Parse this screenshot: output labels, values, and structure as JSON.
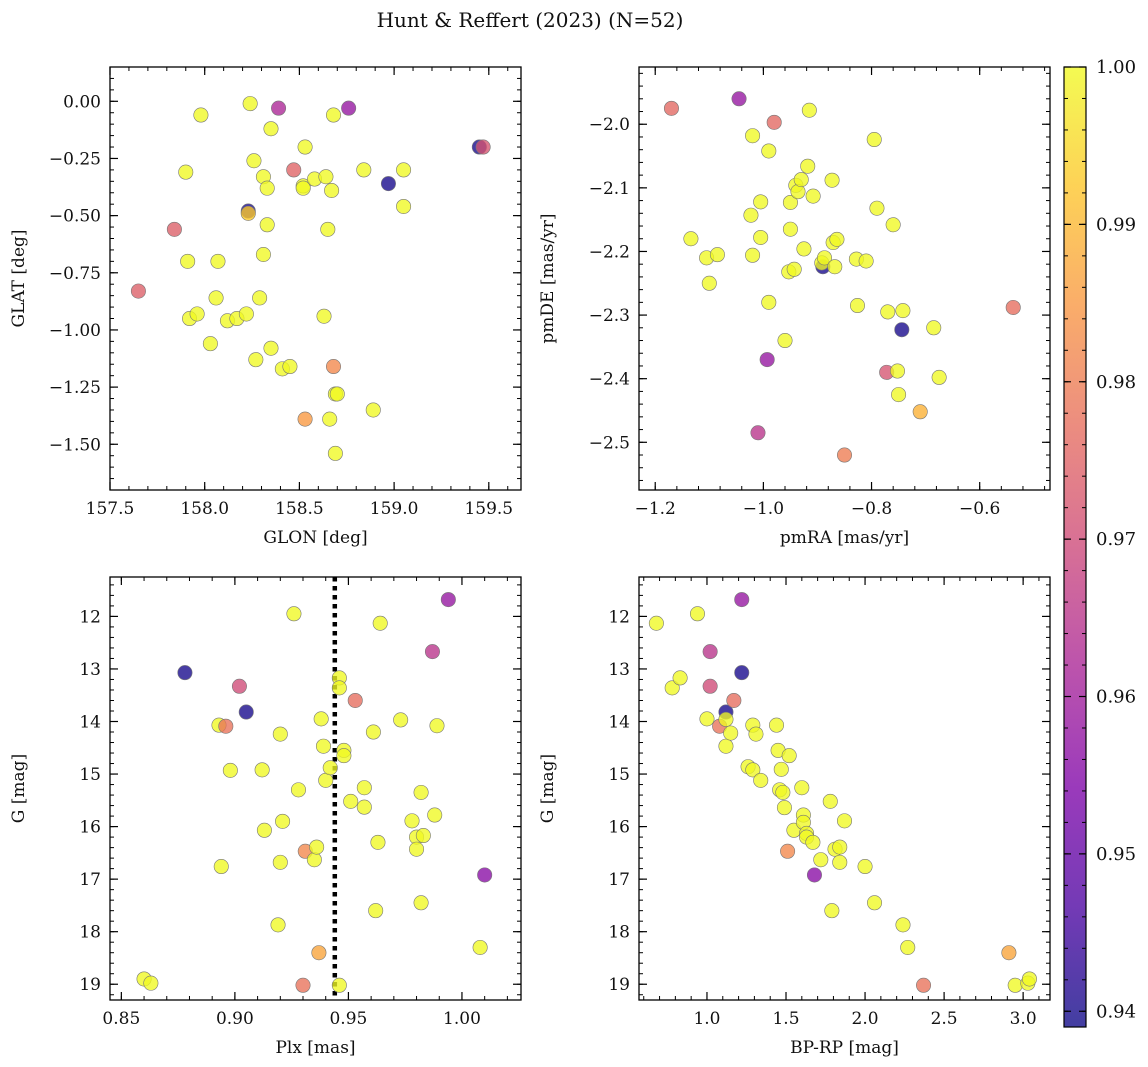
{
  "figure_title": "Hunt & Reffert (2023) (N=52)",
  "colorbar": {
    "range": [
      0.939,
      1.0
    ],
    "ticks": [
      0.94,
      0.95,
      0.96,
      0.97,
      0.98,
      0.99,
      1.0
    ],
    "tick_labels": [
      "0.94",
      "0.95",
      "0.96",
      "0.97",
      "0.98",
      "0.99",
      "1.00"
    ],
    "colormap": "plasma"
  },
  "chart_data": [
    {
      "type": "scatter",
      "id": "glon_glat",
      "xlabel": "GLON [deg]",
      "ylabel": "GLAT [deg]",
      "xlim": [
        157.5,
        159.67
      ],
      "ylim": [
        -1.7,
        0.15
      ],
      "y_inverted": false,
      "xticks": [
        157.5,
        158.0,
        158.5,
        159.0,
        159.5
      ],
      "xtick_labels": [
        "157.5",
        "158.0",
        "158.5",
        "159.0",
        "159.5"
      ],
      "yticks": [
        0.0,
        -0.25,
        -0.5,
        -0.75,
        -1.0,
        -1.25,
        -1.5
      ],
      "ytick_labels": [
        "0.00",
        "−0.25",
        "−0.50",
        "−0.75",
        "−1.00",
        "−1.25",
        "−1.50"
      ],
      "points": [
        [
          157.65,
          -0.83,
          0.974
        ],
        [
          157.84,
          -0.56,
          0.974
        ],
        [
          157.9,
          -0.31,
          1.0
        ],
        [
          157.91,
          -0.7,
          1.0
        ],
        [
          157.92,
          -0.95,
          1.0
        ],
        [
          157.96,
          -0.93,
          1.0
        ],
        [
          157.98,
          -0.06,
          1.0
        ],
        [
          158.03,
          -1.06,
          1.0
        ],
        [
          158.06,
          -0.86,
          1.0
        ],
        [
          158.07,
          -0.7,
          1.0
        ],
        [
          158.12,
          -0.96,
          1.0
        ],
        [
          158.17,
          -0.95,
          1.0
        ],
        [
          158.22,
          -0.93,
          1.0
        ],
        [
          158.23,
          -0.48,
          0.94
        ],
        [
          158.23,
          -0.49,
          0.993
        ],
        [
          158.24,
          -0.01,
          1.0
        ],
        [
          158.26,
          -0.26,
          1.0
        ],
        [
          158.27,
          -1.13,
          1.0
        ],
        [
          158.29,
          -0.86,
          1.0
        ],
        [
          158.31,
          -0.67,
          1.0
        ],
        [
          158.31,
          -0.33,
          1.0
        ],
        [
          158.33,
          -0.38,
          1.0
        ],
        [
          158.33,
          -0.54,
          1.0
        ],
        [
          158.35,
          -0.12,
          1.0
        ],
        [
          158.35,
          -1.08,
          1.0
        ],
        [
          158.39,
          -0.03,
          0.962
        ],
        [
          158.41,
          -1.17,
          1.0
        ],
        [
          158.45,
          -1.16,
          1.0
        ],
        [
          158.47,
          -0.3,
          0.975
        ],
        [
          158.52,
          -0.37,
          1.0
        ],
        [
          158.52,
          -0.38,
          1.0
        ],
        [
          158.53,
          -0.2,
          1.0
        ],
        [
          158.53,
          -1.39,
          0.985
        ],
        [
          158.58,
          -0.34,
          1.0
        ],
        [
          158.63,
          -0.94,
          1.0
        ],
        [
          158.64,
          -0.33,
          1.0
        ],
        [
          158.65,
          -0.56,
          1.0
        ],
        [
          158.66,
          -1.39,
          1.0
        ],
        [
          158.67,
          -0.39,
          1.0
        ],
        [
          158.68,
          -0.06,
          1.0
        ],
        [
          158.68,
          -1.16,
          0.982
        ],
        [
          158.69,
          -1.28,
          1.0
        ],
        [
          158.7,
          -1.28,
          1.0
        ],
        [
          158.69,
          -1.54,
          1.0
        ],
        [
          158.76,
          -0.03,
          0.958
        ],
        [
          158.84,
          -0.3,
          1.0
        ],
        [
          158.89,
          -1.35,
          1.0
        ],
        [
          158.97,
          -0.36,
          0.94
        ],
        [
          159.05,
          -0.3,
          1.0
        ],
        [
          159.05,
          -0.46,
          1.0
        ],
        [
          159.45,
          -0.2,
          0.94
        ],
        [
          159.47,
          -0.2,
          0.972
        ]
      ]
    },
    {
      "type": "scatter",
      "id": "pmra_pmde",
      "xlabel": "pmRA [mas/yr]",
      "ylabel": "pmDE [mas/yr]",
      "xlim": [
        -1.23,
        -0.47
      ],
      "ylim": [
        -2.575,
        -1.91
      ],
      "y_inverted": false,
      "xticks": [
        -1.2,
        -1.0,
        -0.8,
        -0.6
      ],
      "xtick_labels": [
        "−1.2",
        "−1.0",
        "−0.8",
        "−0.6"
      ],
      "yticks": [
        -2.0,
        -2.1,
        -2.2,
        -2.3,
        -2.4,
        -2.5
      ],
      "ytick_labels": [
        "−2.0",
        "−2.1",
        "−2.2",
        "−2.3",
        "−2.4",
        "−2.5"
      ],
      "points": [
        [
          -1.17,
          -1.975,
          0.976
        ],
        [
          -1.134,
          -2.18,
          1.0
        ],
        [
          -1.105,
          -2.21,
          1.0
        ],
        [
          -1.1,
          -2.25,
          1.0
        ],
        [
          -1.085,
          -2.205,
          1.0
        ],
        [
          -1.045,
          -1.96,
          0.958
        ],
        [
          -1.02,
          -2.018,
          1.0
        ],
        [
          -1.023,
          -2.143,
          1.0
        ],
        [
          -1.02,
          -2.206,
          1.0
        ],
        [
          -1.01,
          -2.485,
          0.965
        ],
        [
          -1.005,
          -2.122,
          1.0
        ],
        [
          -1.005,
          -2.178,
          1.0
        ],
        [
          -0.99,
          -2.042,
          1.0
        ],
        [
          -0.99,
          -2.28,
          1.0
        ],
        [
          -0.993,
          -2.37,
          0.958
        ],
        [
          -0.98,
          -1.997,
          0.976
        ],
        [
          -0.96,
          -2.34,
          1.0
        ],
        [
          -0.953,
          -2.232,
          1.0
        ],
        [
          -0.95,
          -2.123,
          1.0
        ],
        [
          -0.95,
          -2.165,
          1.0
        ],
        [
          -0.943,
          -2.228,
          1.0
        ],
        [
          -0.94,
          -2.096,
          1.0
        ],
        [
          -0.936,
          -2.106,
          1.0
        ],
        [
          -0.93,
          -2.087,
          1.0
        ],
        [
          -0.925,
          -2.196,
          1.0
        ],
        [
          -0.918,
          -2.066,
          1.0
        ],
        [
          -0.915,
          -1.978,
          1.0
        ],
        [
          -0.908,
          -2.113,
          1.0
        ],
        [
          -0.89,
          -2.224,
          0.94
        ],
        [
          -0.892,
          -2.218,
          1.0
        ],
        [
          -0.887,
          -2.21,
          1.0
        ],
        [
          -0.873,
          -2.088,
          1.0
        ],
        [
          -0.871,
          -2.186,
          1.0
        ],
        [
          -0.868,
          -2.224,
          1.0
        ],
        [
          -0.864,
          -2.181,
          1.0
        ],
        [
          -0.85,
          -2.52,
          0.98
        ],
        [
          -0.828,
          -2.212,
          1.0
        ],
        [
          -0.826,
          -2.285,
          1.0
        ],
        [
          -0.81,
          -2.215,
          1.0
        ],
        [
          -0.795,
          -2.024,
          1.0
        ],
        [
          -0.79,
          -2.132,
          1.0
        ],
        [
          -0.772,
          -2.39,
          0.972
        ],
        [
          -0.77,
          -2.295,
          1.0
        ],
        [
          -0.76,
          -2.158,
          1.0
        ],
        [
          -0.752,
          -2.388,
          1.0
        ],
        [
          -0.75,
          -2.425,
          1.0
        ],
        [
          -0.742,
          -2.293,
          1.0
        ],
        [
          -0.744,
          -2.323,
          0.94
        ],
        [
          -0.71,
          -2.452,
          0.989
        ],
        [
          -0.685,
          -2.32,
          1.0
        ],
        [
          -0.675,
          -2.398,
          1.0
        ],
        [
          -0.538,
          -2.288,
          0.977
        ]
      ]
    },
    {
      "type": "scatter",
      "id": "plx_g",
      "xlabel": "Plx [mas]",
      "ylabel": "G [mag]",
      "xlim": [
        0.845,
        1.026
      ],
      "ylim": [
        11.25,
        19.3
      ],
      "y_inverted": true,
      "vline": {
        "x": 0.944,
        "style": "dotted",
        "color": "#000000"
      },
      "xticks": [
        0.85,
        0.9,
        0.95,
        1.0
      ],
      "xtick_labels": [
        "0.85",
        "0.90",
        "0.95",
        "1.00"
      ],
      "yticks": [
        12,
        13,
        14,
        15,
        16,
        17,
        18,
        19
      ],
      "ytick_labels": [
        "12",
        "13",
        "14",
        "15",
        "16",
        "17",
        "18",
        "19"
      ],
      "points": [
        [
          0.86,
          18.9,
          1.0
        ],
        [
          0.863,
          18.98,
          1.0
        ],
        [
          0.878,
          13.07,
          0.94
        ],
        [
          0.893,
          14.07,
          1.0
        ],
        [
          0.894,
          16.76,
          1.0
        ],
        [
          0.896,
          14.09,
          0.978
        ],
        [
          0.898,
          14.93,
          1.0
        ],
        [
          0.902,
          13.33,
          0.97
        ],
        [
          0.905,
          13.82,
          0.94
        ],
        [
          0.912,
          14.92,
          1.0
        ],
        [
          0.913,
          16.07,
          1.0
        ],
        [
          0.919,
          17.87,
          1.0
        ],
        [
          0.92,
          14.24,
          1.0
        ],
        [
          0.92,
          16.68,
          1.0
        ],
        [
          0.921,
          15.9,
          1.0
        ],
        [
          0.926,
          11.95,
          1.0
        ],
        [
          0.928,
          15.3,
          1.0
        ],
        [
          0.93,
          19.02,
          0.978
        ],
        [
          0.931,
          16.47,
          0.982
        ],
        [
          0.935,
          16.63,
          1.0
        ],
        [
          0.936,
          16.39,
          1.0
        ],
        [
          0.937,
          18.4,
          0.987
        ],
        [
          0.938,
          13.95,
          1.0
        ],
        [
          0.939,
          14.47,
          1.0
        ],
        [
          0.94,
          15.12,
          1.0
        ],
        [
          0.942,
          14.88,
          1.0
        ],
        [
          0.946,
          13.17,
          1.0
        ],
        [
          0.946,
          13.36,
          1.0
        ],
        [
          0.946,
          19.02,
          1.0
        ],
        [
          0.948,
          14.55,
          1.0
        ],
        [
          0.948,
          14.65,
          1.0
        ],
        [
          0.951,
          15.52,
          1.0
        ],
        [
          0.953,
          13.6,
          0.977
        ],
        [
          0.957,
          15.26,
          1.0
        ],
        [
          0.957,
          15.63,
          1.0
        ],
        [
          0.961,
          14.2,
          1.0
        ],
        [
          0.962,
          17.6,
          1.0
        ],
        [
          0.963,
          16.3,
          1.0
        ],
        [
          0.964,
          12.13,
          1.0
        ],
        [
          0.973,
          13.97,
          1.0
        ],
        [
          0.978,
          15.89,
          1.0
        ],
        [
          0.98,
          16.2,
          1.0
        ],
        [
          0.98,
          16.43,
          1.0
        ],
        [
          0.982,
          15.35,
          1.0
        ],
        [
          0.982,
          17.45,
          1.0
        ],
        [
          0.983,
          16.17,
          1.0
        ],
        [
          0.987,
          12.67,
          0.965
        ],
        [
          0.988,
          15.78,
          1.0
        ],
        [
          0.989,
          14.08,
          1.0
        ],
        [
          0.994,
          11.68,
          0.958
        ],
        [
          1.008,
          18.3,
          1.0
        ],
        [
          1.01,
          16.92,
          0.956
        ]
      ]
    },
    {
      "type": "scatter",
      "id": "bprp_g",
      "xlabel": "BP-RP [mag]",
      "ylabel": "G [mag]",
      "xlim": [
        0.57,
        3.17
      ],
      "ylim": [
        11.25,
        19.3
      ],
      "y_inverted": true,
      "xticks": [
        1.0,
        1.5,
        2.0,
        2.5,
        3.0
      ],
      "xtick_labels": [
        "1.0",
        "1.5",
        "2.0",
        "2.5",
        "3.0"
      ],
      "yticks": [
        12,
        13,
        14,
        15,
        16,
        17,
        18,
        19
      ],
      "ytick_labels": [
        "12",
        "13",
        "14",
        "15",
        "16",
        "17",
        "18",
        "19"
      ],
      "points": [
        [
          0.68,
          12.13,
          1.0
        ],
        [
          0.78,
          13.36,
          1.0
        ],
        [
          0.83,
          13.17,
          1.0
        ],
        [
          0.94,
          11.95,
          1.0
        ],
        [
          1.0,
          13.95,
          1.0
        ],
        [
          1.02,
          12.67,
          0.965
        ],
        [
          1.02,
          13.33,
          0.97
        ],
        [
          1.08,
          14.09,
          0.978
        ],
        [
          1.12,
          13.82,
          0.94
        ],
        [
          1.12,
          13.96,
          1.0
        ],
        [
          1.12,
          14.47,
          1.0
        ],
        [
          1.15,
          14.22,
          1.0
        ],
        [
          1.17,
          13.6,
          0.977
        ],
        [
          1.22,
          11.68,
          0.958
        ],
        [
          1.22,
          13.07,
          0.94
        ],
        [
          1.26,
          14.86,
          1.0
        ],
        [
          1.29,
          14.07,
          1.0
        ],
        [
          1.29,
          14.92,
          1.0
        ],
        [
          1.31,
          14.24,
          1.0
        ],
        [
          1.34,
          15.12,
          1.0
        ],
        [
          1.44,
          14.07,
          1.0
        ],
        [
          1.45,
          14.55,
          1.0
        ],
        [
          1.46,
          15.3,
          1.0
        ],
        [
          1.47,
          14.91,
          1.0
        ],
        [
          1.48,
          15.35,
          1.0
        ],
        [
          1.49,
          15.64,
          1.0
        ],
        [
          1.52,
          14.65,
          1.0
        ],
        [
          1.51,
          16.47,
          0.982
        ],
        [
          1.55,
          16.07,
          1.0
        ],
        [
          1.6,
          15.26,
          1.0
        ],
        [
          1.61,
          15.78,
          1.0
        ],
        [
          1.61,
          15.92,
          1.0
        ],
        [
          1.63,
          16.13,
          1.0
        ],
        [
          1.63,
          16.2,
          1.0
        ],
        [
          1.67,
          16.3,
          1.0
        ],
        [
          1.68,
          16.92,
          0.956
        ],
        [
          1.72,
          16.63,
          1.0
        ],
        [
          1.78,
          15.52,
          1.0
        ],
        [
          1.79,
          17.6,
          1.0
        ],
        [
          1.81,
          16.43,
          1.0
        ],
        [
          1.84,
          16.39,
          1.0
        ],
        [
          1.84,
          16.68,
          1.0
        ],
        [
          1.87,
          15.89,
          1.0
        ],
        [
          2.0,
          16.76,
          1.0
        ],
        [
          2.06,
          17.45,
          1.0
        ],
        [
          2.24,
          17.87,
          1.0
        ],
        [
          2.27,
          18.3,
          1.0
        ],
        [
          2.37,
          19.02,
          0.978
        ],
        [
          2.91,
          18.4,
          0.987
        ],
        [
          2.95,
          19.02,
          1.0
        ],
        [
          3.03,
          18.98,
          1.0
        ],
        [
          3.04,
          18.9,
          1.0
        ]
      ]
    }
  ]
}
